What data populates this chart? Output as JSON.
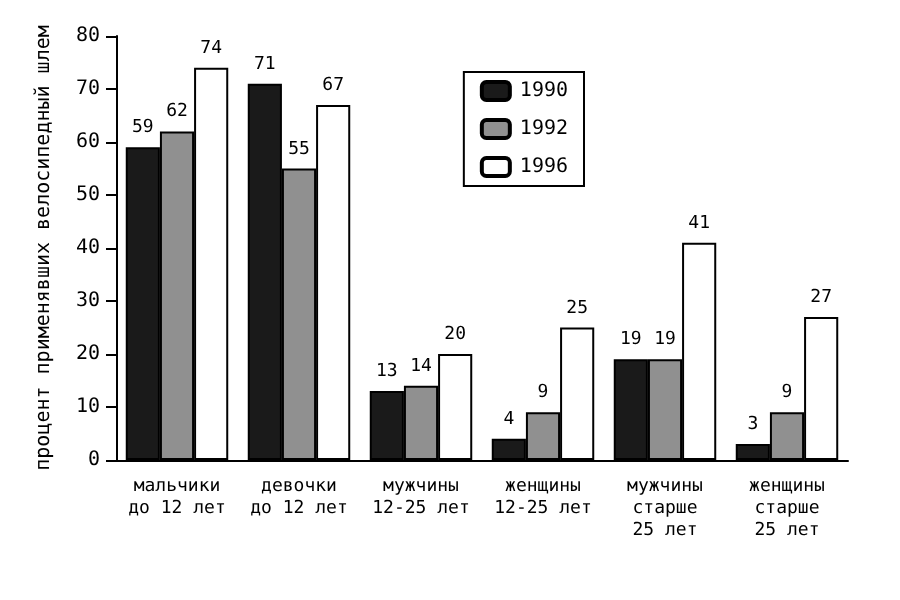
{
  "chart_data": {
    "type": "bar",
    "ylabel": "процент применявших велосипедный шлем",
    "categories": [
      "мальчики\nдо 12 лет",
      "девочки\nдо 12 лет",
      "мужчины\n12-25 лет",
      "женщины\n12-25 лет",
      "мужчины\nстарше\n25 лет",
      "женщины\nстарше\n25 лет"
    ],
    "series": [
      {
        "name": "1990",
        "color": "#1a1a1a",
        "values": [
          59,
          71,
          13,
          4,
          19,
          3
        ]
      },
      {
        "name": "1992",
        "color": "#909090",
        "values": [
          62,
          55,
          14,
          9,
          19,
          9
        ]
      },
      {
        "name": "1996",
        "color": "#ffffff",
        "values": [
          74,
          67,
          20,
          25,
          41,
          27
        ]
      }
    ],
    "ylim": [
      0,
      80
    ],
    "yticks": [
      0,
      10,
      20,
      30,
      40,
      50,
      60,
      70,
      80
    ],
    "data_labels": true,
    "legend": "top right",
    "grid": false
  }
}
